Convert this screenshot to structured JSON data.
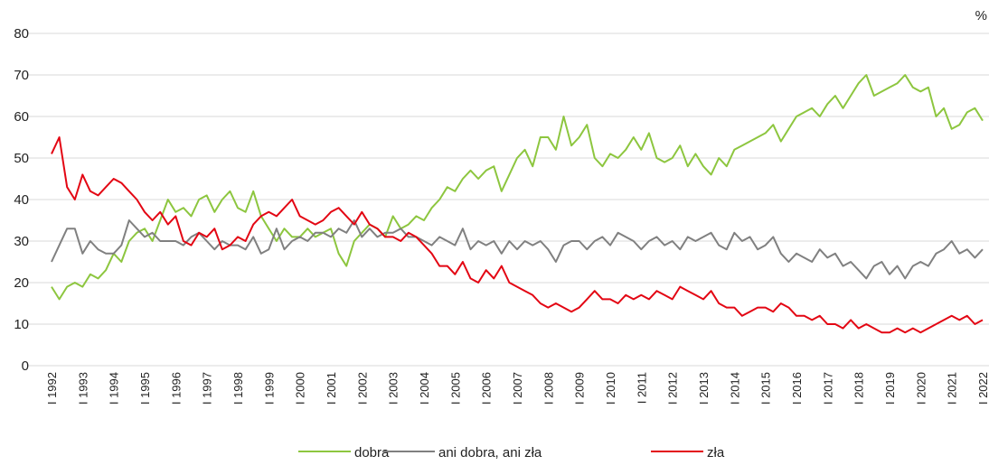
{
  "chart_data": {
    "type": "line",
    "unit_label": "%",
    "categories": [
      "I 1992",
      null,
      null,
      null,
      "I 1993",
      null,
      null,
      null,
      "I 1994",
      null,
      null,
      null,
      "I 1995",
      null,
      null,
      null,
      "I 1996",
      null,
      null,
      null,
      "I 1997",
      null,
      null,
      null,
      "I 1998",
      null,
      null,
      null,
      "I 1999",
      null,
      null,
      null,
      "I 2000",
      null,
      null,
      null,
      "I 2001",
      null,
      null,
      null,
      "I 2002",
      null,
      null,
      null,
      "I 2003",
      null,
      null,
      null,
      "I 2004",
      null,
      null,
      null,
      "I 2005",
      null,
      null,
      null,
      "I 2006",
      null,
      null,
      null,
      "I 2007",
      null,
      null,
      null,
      "I 2008",
      null,
      null,
      null,
      "I 2009",
      null,
      null,
      null,
      "I 2010",
      null,
      null,
      null,
      "I 2011",
      null,
      null,
      null,
      "I 2012",
      null,
      null,
      null,
      "I 2013",
      null,
      null,
      null,
      "I 2014",
      null,
      null,
      null,
      "I 2015",
      null,
      null,
      null,
      "I 2016",
      null,
      null,
      null,
      "I 2017",
      null,
      null,
      null,
      "I 2018",
      null,
      null,
      null,
      "I 2019",
      null,
      null,
      null,
      "I 2020",
      null,
      null,
      null,
      "I 2021",
      null,
      null,
      null,
      "I 2022"
    ],
    "series": [
      {
        "name": "dobra",
        "color": "#8dc63f",
        "values": [
          19,
          16,
          19,
          20,
          19,
          22,
          21,
          23,
          27,
          25,
          30,
          32,
          33,
          30,
          35,
          40,
          37,
          38,
          36,
          40,
          41,
          37,
          40,
          42,
          38,
          37,
          42,
          36,
          33,
          30,
          33,
          31,
          31,
          33,
          31,
          32,
          33,
          27,
          24,
          30,
          32,
          34,
          33,
          31,
          36,
          33,
          34,
          36,
          35,
          38,
          40,
          43,
          42,
          45,
          47,
          45,
          47,
          48,
          42,
          46,
          50,
          52,
          48,
          55,
          55,
          52,
          60,
          53,
          55,
          58,
          50,
          48,
          51,
          50,
          52,
          55,
          52,
          56,
          50,
          49,
          50,
          53,
          48,
          51,
          48,
          46,
          50,
          48,
          52,
          53,
          54,
          55,
          56,
          58,
          54,
          57,
          60,
          61,
          62,
          60,
          63,
          65,
          62,
          65,
          68,
          70,
          65,
          66,
          67,
          68,
          70,
          67,
          66,
          67,
          60,
          62,
          57,
          58,
          61,
          62,
          59
        ]
      },
      {
        "name": "ani dobra, ani zła",
        "color": "#808080",
        "values": [
          25,
          29,
          33,
          33,
          27,
          30,
          28,
          27,
          27,
          29,
          35,
          33,
          31,
          32,
          30,
          30,
          30,
          29,
          31,
          32,
          30,
          28,
          30,
          29,
          29,
          28,
          31,
          27,
          28,
          33,
          28,
          30,
          31,
          30,
          32,
          32,
          31,
          33,
          32,
          35,
          31,
          33,
          31,
          32,
          32,
          33,
          31,
          31,
          30,
          29,
          31,
          30,
          29,
          33,
          28,
          30,
          29,
          30,
          27,
          30,
          28,
          30,
          29,
          30,
          28,
          25,
          29,
          30,
          30,
          28,
          30,
          31,
          29,
          32,
          31,
          30,
          28,
          30,
          31,
          29,
          30,
          28,
          31,
          30,
          31,
          32,
          29,
          28,
          32,
          30,
          31,
          28,
          29,
          31,
          27,
          25,
          27,
          26,
          25,
          28,
          26,
          27,
          24,
          25,
          23,
          21,
          24,
          25,
          22,
          24,
          21,
          24,
          25,
          24,
          27,
          28,
          30,
          27,
          28,
          26,
          28
        ]
      },
      {
        "name": "zła",
        "color": "#e30613",
        "values": [
          51,
          55,
          43,
          40,
          46,
          42,
          41,
          43,
          45,
          44,
          42,
          40,
          37,
          35,
          37,
          34,
          36,
          30,
          29,
          32,
          31,
          33,
          28,
          29,
          31,
          30,
          34,
          36,
          37,
          36,
          38,
          40,
          36,
          35,
          34,
          35,
          37,
          38,
          36,
          34,
          37,
          34,
          33,
          31,
          31,
          30,
          32,
          31,
          29,
          27,
          24,
          24,
          22,
          25,
          21,
          20,
          23,
          21,
          24,
          20,
          19,
          18,
          17,
          15,
          14,
          15,
          14,
          13,
          14,
          16,
          18,
          16,
          16,
          15,
          17,
          16,
          17,
          16,
          18,
          17,
          16,
          19,
          18,
          17,
          16,
          18,
          15,
          14,
          14,
          12,
          13,
          14,
          14,
          13,
          15,
          14,
          12,
          12,
          11,
          12,
          10,
          10,
          9,
          11,
          9,
          10,
          9,
          8,
          8,
          9,
          8,
          9,
          8,
          9,
          10,
          11,
          12,
          11,
          12,
          10,
          11
        ]
      }
    ],
    "ylim": [
      0,
      80
    ],
    "yticks": [
      0,
      10,
      20,
      30,
      40,
      50,
      60,
      70,
      80
    ],
    "grid": true,
    "legend": "bottom"
  }
}
